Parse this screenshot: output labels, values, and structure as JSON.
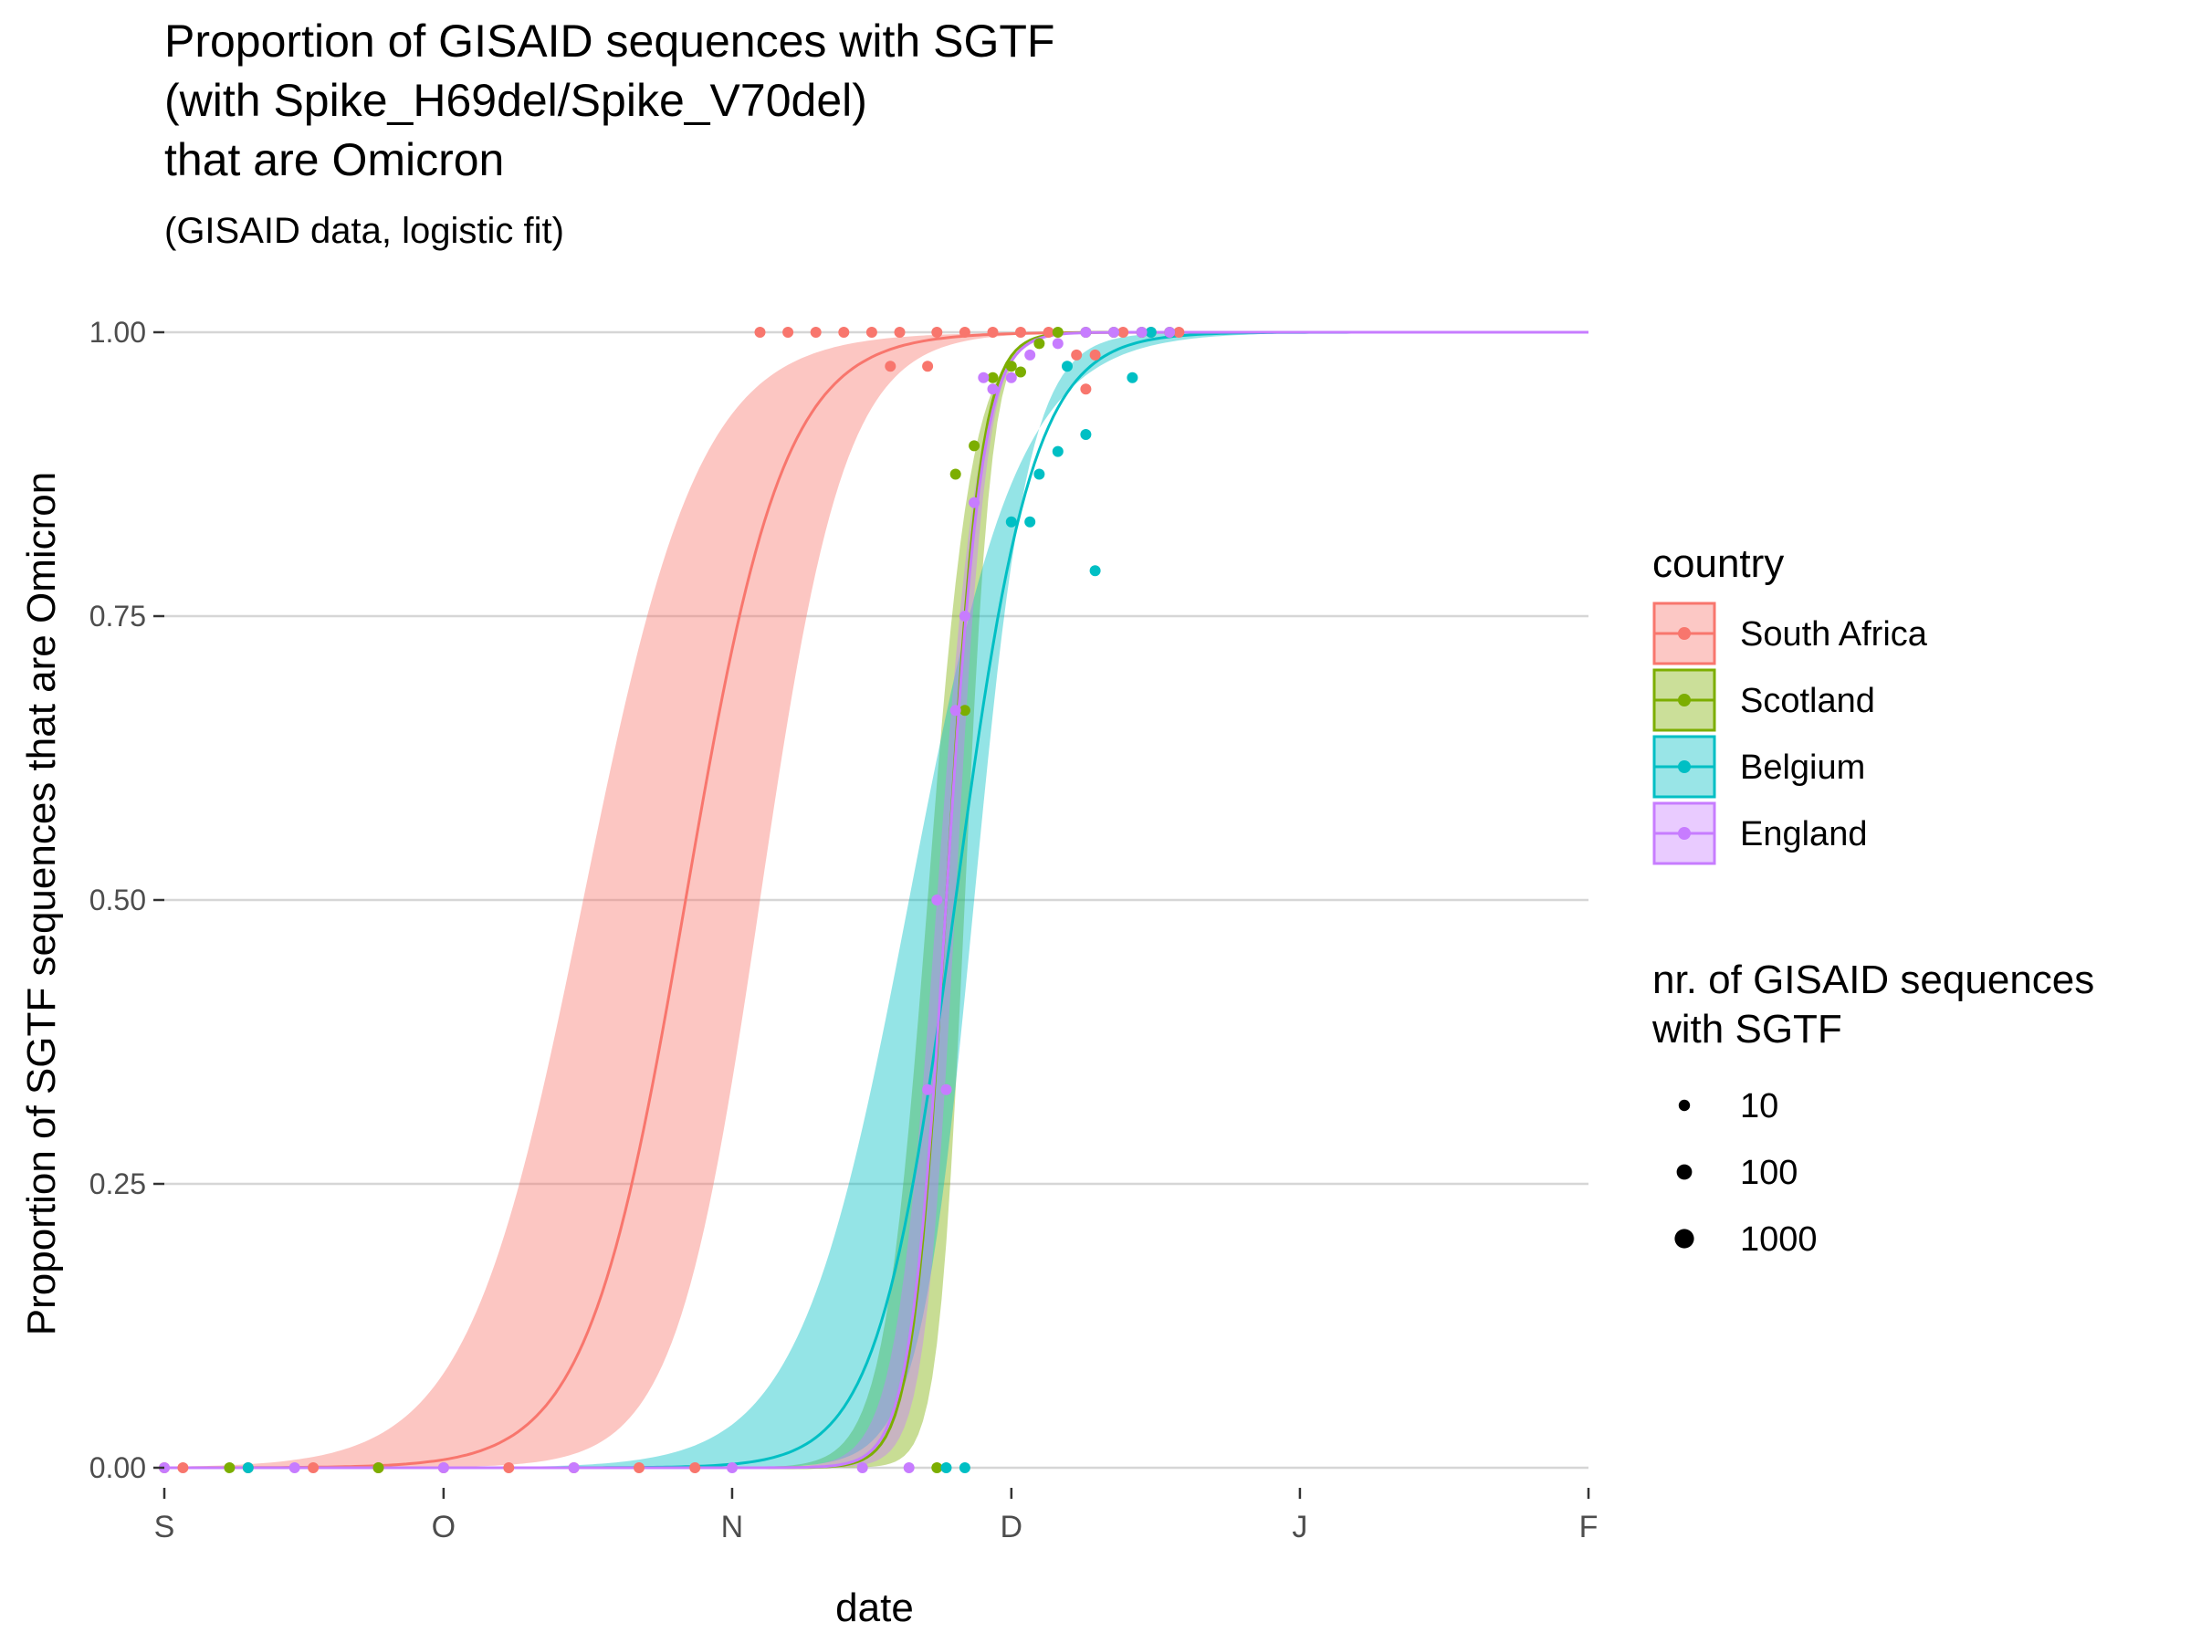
{
  "chart_data": {
    "type": "line",
    "title": [
      "Proportion of GISAID sequences with SGTF",
      "(with Spike_H69del/Spike_V70del)",
      "that are Omicron"
    ],
    "subtitle": "(GISAID data, logistic fit)",
    "xlabel": "date",
    "ylabel": "Proportion of SGTF sequences that are Omicron",
    "x_ticks": [
      "S",
      "O",
      "N",
      "D",
      "J",
      "F"
    ],
    "x_tick_dates": [
      "2021-09-01",
      "2021-10-01",
      "2021-11-01",
      "2021-12-01",
      "2022-01-01",
      "2022-02-01"
    ],
    "xlim": [
      "2021-09-01",
      "2022-02-01"
    ],
    "y_ticks": [
      "0.00",
      "0.25",
      "0.50",
      "0.75",
      "1.00"
    ],
    "ylim": [
      0,
      1
    ],
    "grid": "horizontal major",
    "legend_position": "right",
    "legend_color_title": "country",
    "legend_size_title": [
      "nr. of GISAID sequences",
      "with SGTF"
    ],
    "size_legend": [
      {
        "label": "10",
        "value": 10
      },
      {
        "label": "100",
        "value": 100
      },
      {
        "label": "1000",
        "value": 1000
      }
    ],
    "series": [
      {
        "name": "South Africa",
        "color": "#F8766D",
        "fit": {
          "midpoint": "2021-10-27",
          "ci_lower_midpoint": "2021-11-04",
          "ci_upper_midpoint": "2021-10-16"
        },
        "points": [
          {
            "x": "2021-09-01",
            "y": 0
          },
          {
            "x": "2021-09-03",
            "y": 0
          },
          {
            "x": "2021-09-10",
            "y": 0
          },
          {
            "x": "2021-09-17",
            "y": 0
          },
          {
            "x": "2021-09-24",
            "y": 0
          },
          {
            "x": "2021-10-01",
            "y": 0
          },
          {
            "x": "2021-10-08",
            "y": 0
          },
          {
            "x": "2021-10-15",
            "y": 0
          },
          {
            "x": "2021-10-22",
            "y": 0
          },
          {
            "x": "2021-10-28",
            "y": 0
          },
          {
            "x": "2021-11-04",
            "y": 1
          },
          {
            "x": "2021-11-07",
            "y": 1
          },
          {
            "x": "2021-11-10",
            "y": 1
          },
          {
            "x": "2021-11-13",
            "y": 1
          },
          {
            "x": "2021-11-16",
            "y": 1
          },
          {
            "x": "2021-11-18",
            "y": 0.97
          },
          {
            "x": "2021-11-19",
            "y": 1
          },
          {
            "x": "2021-11-22",
            "y": 0.97
          },
          {
            "x": "2021-11-23",
            "y": 1
          },
          {
            "x": "2021-11-26",
            "y": 1
          },
          {
            "x": "2021-11-29",
            "y": 1
          },
          {
            "x": "2021-12-02",
            "y": 1
          },
          {
            "x": "2021-12-05",
            "y": 1
          },
          {
            "x": "2021-12-08",
            "y": 0.98
          },
          {
            "x": "2021-12-09",
            "y": 0.95
          },
          {
            "x": "2021-12-10",
            "y": 0.98
          },
          {
            "x": "2021-12-13",
            "y": 1
          },
          {
            "x": "2021-12-16",
            "y": 1
          },
          {
            "x": "2021-12-19",
            "y": 1
          }
        ]
      },
      {
        "name": "Scotland",
        "color": "#7CAE00",
        "fit": {
          "midpoint": "2021-11-24",
          "ci_lower_midpoint": "2021-11-26",
          "ci_upper_midpoint": "2021-11-22"
        },
        "points": [
          {
            "x": "2021-09-08",
            "y": 0
          },
          {
            "x": "2021-09-24",
            "y": 0
          },
          {
            "x": "2021-11-23",
            "y": 0
          },
          {
            "x": "2021-11-25",
            "y": 0.875
          },
          {
            "x": "2021-11-26",
            "y": 0.667
          },
          {
            "x": "2021-11-27",
            "y": 0.9
          },
          {
            "x": "2021-11-29",
            "y": 0.96
          },
          {
            "x": "2021-12-01",
            "y": 0.97
          },
          {
            "x": "2021-12-02",
            "y": 0.965
          },
          {
            "x": "2021-12-04",
            "y": 0.99
          },
          {
            "x": "2021-12-06",
            "y": 1
          },
          {
            "x": "2021-12-09",
            "y": 1
          },
          {
            "x": "2021-12-12",
            "y": 1
          },
          {
            "x": "2021-12-15",
            "y": 1
          },
          {
            "x": "2021-12-18",
            "y": 1
          }
        ]
      },
      {
        "name": "Belgium",
        "color": "#00BFC4",
        "fit": {
          "midpoint": "2021-11-25",
          "ci_lower_midpoint": "2021-11-27",
          "ci_upper_midpoint": "2021-11-20"
        },
        "points": [
          {
            "x": "2021-09-10",
            "y": 0
          },
          {
            "x": "2021-11-24",
            "y": 0
          },
          {
            "x": "2021-11-26",
            "y": 0
          },
          {
            "x": "2021-12-01",
            "y": 0.833
          },
          {
            "x": "2021-12-03",
            "y": 0.833
          },
          {
            "x": "2021-12-04",
            "y": 0.875
          },
          {
            "x": "2021-12-06",
            "y": 0.895
          },
          {
            "x": "2021-12-07",
            "y": 0.97
          },
          {
            "x": "2021-12-09",
            "y": 0.91
          },
          {
            "x": "2021-12-10",
            "y": 0.79
          },
          {
            "x": "2021-12-14",
            "y": 0.96
          },
          {
            "x": "2021-12-16",
            "y": 1
          }
        ]
      },
      {
        "name": "England",
        "color": "#C77CFF",
        "fit": {
          "midpoint": "2021-11-24",
          "ci_lower_midpoint": "2021-11-25",
          "ci_upper_midpoint": "2021-11-23"
        },
        "points": [
          {
            "x": "2021-09-01",
            "y": 0
          },
          {
            "x": "2021-09-15",
            "y": 0
          },
          {
            "x": "2021-10-01",
            "y": 0
          },
          {
            "x": "2021-10-15",
            "y": 0
          },
          {
            "x": "2021-11-01",
            "y": 0
          },
          {
            "x": "2021-11-15",
            "y": 0
          },
          {
            "x": "2021-11-20",
            "y": 0
          },
          {
            "x": "2021-11-22",
            "y": 0.333
          },
          {
            "x": "2021-11-23",
            "y": 0.5
          },
          {
            "x": "2021-11-24",
            "y": 0.333
          },
          {
            "x": "2021-11-25",
            "y": 0.667
          },
          {
            "x": "2021-11-26",
            "y": 0.75
          },
          {
            "x": "2021-11-27",
            "y": 0.85
          },
          {
            "x": "2021-11-28",
            "y": 0.96
          },
          {
            "x": "2021-11-29",
            "y": 0.95
          },
          {
            "x": "2021-12-01",
            "y": 0.96
          },
          {
            "x": "2021-12-03",
            "y": 0.98
          },
          {
            "x": "2021-12-06",
            "y": 0.99
          },
          {
            "x": "2021-12-09",
            "y": 1
          },
          {
            "x": "2021-12-12",
            "y": 1
          },
          {
            "x": "2021-12-15",
            "y": 1
          },
          {
            "x": "2021-12-18",
            "y": 1
          }
        ]
      }
    ]
  }
}
